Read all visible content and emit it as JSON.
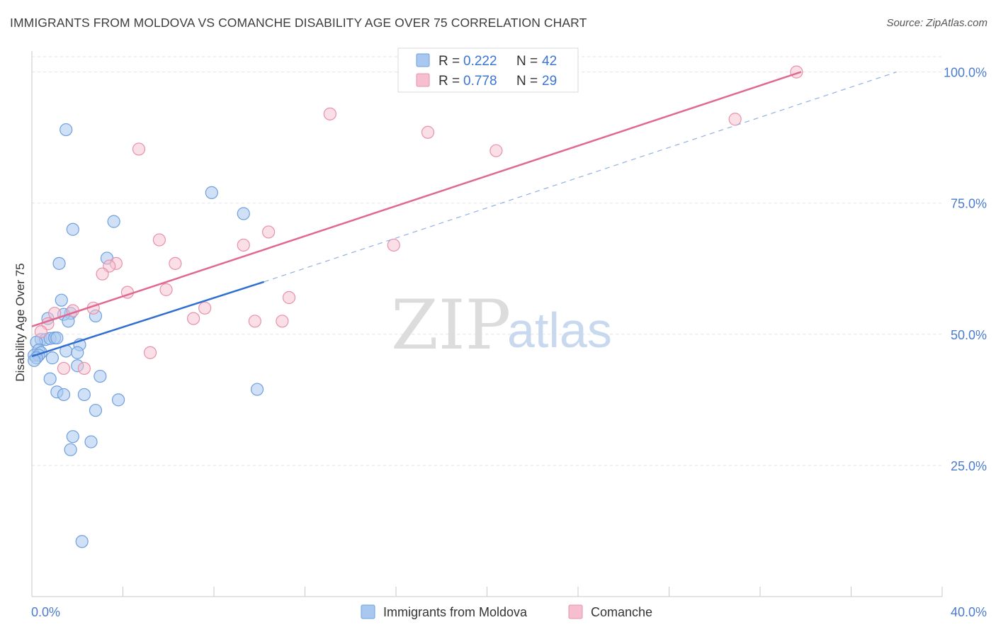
{
  "header": {
    "title": "IMMIGRANTS FROM MOLDOVA VS COMANCHE DISABILITY AGE OVER 75 CORRELATION CHART",
    "source": "Source: ZipAtlas.com"
  },
  "watermark": {
    "zip": "ZIP",
    "atlas": "atlas"
  },
  "legend": {
    "rows": [
      {
        "r_label": "R =",
        "r_value": "0.222",
        "n_label": "N =",
        "n_value": "42"
      },
      {
        "r_label": "R =",
        "r_value": "0.778",
        "n_label": "N =",
        "n_value": "29"
      }
    ]
  },
  "bottom_legend": {
    "series1": "Immigrants from Moldova",
    "series2": "Comanche"
  },
  "colors": {
    "series1_fill": "#a9c8f0",
    "series1_stroke": "#6f9fdc",
    "series1_line": "#2f6fcf",
    "series2_fill": "#f6bfd0",
    "series2_stroke": "#e890ab",
    "series2_line": "#e0698f",
    "grid": "#e3e3e3",
    "tick_text": "#4a7bd0"
  },
  "chart_data": {
    "type": "scatter",
    "title": "IMMIGRANTS FROM MOLDOVA VS COMANCHE DISABILITY AGE OVER 75 CORRELATION CHART",
    "xlabel": "",
    "ylabel": "Disability Age Over 75",
    "xlim": [
      0,
      40
    ],
    "ylim": [
      0,
      104
    ],
    "x_tick_labels": [
      "0.0%",
      "40.0%"
    ],
    "y_ticks": [
      25,
      50,
      75,
      100
    ],
    "y_tick_labels": [
      "25.0%",
      "50.0%",
      "75.0%",
      "100.0%"
    ],
    "grid": true,
    "legend_position": "top-center",
    "series": [
      {
        "name": "Immigrants from Moldova",
        "R": 0.222,
        "N": 42,
        "trend": {
          "x": [
            0,
            10.2
          ],
          "y": [
            45.8,
            60.0
          ],
          "dashed_extension": {
            "x": [
              10.2,
              38.0
            ],
            "y": [
              60.0,
              100.0
            ]
          }
        },
        "points": [
          [
            1.5,
            89.0
          ],
          [
            7.9,
            77.0
          ],
          [
            9.3,
            73.0
          ],
          [
            3.6,
            71.5
          ],
          [
            1.8,
            70.0
          ],
          [
            3.3,
            64.5
          ],
          [
            1.2,
            63.5
          ],
          [
            1.3,
            56.5
          ],
          [
            1.7,
            54.0
          ],
          [
            1.4,
            53.8
          ],
          [
            0.7,
            53.0
          ],
          [
            2.8,
            53.5
          ],
          [
            1.6,
            52.5
          ],
          [
            0.4,
            49.0
          ],
          [
            0.6,
            49.0
          ],
          [
            0.8,
            49.2
          ],
          [
            1.0,
            49.3
          ],
          [
            1.1,
            49.3
          ],
          [
            2.1,
            48.0
          ],
          [
            0.2,
            48.5
          ],
          [
            0.3,
            47.0
          ],
          [
            0.4,
            46.5
          ],
          [
            0.1,
            46.0
          ],
          [
            1.5,
            46.8
          ],
          [
            2.0,
            46.5
          ],
          [
            0.3,
            46.0
          ],
          [
            0.2,
            45.5
          ],
          [
            0.1,
            45.0
          ],
          [
            0.9,
            45.5
          ],
          [
            2.0,
            44.0
          ],
          [
            3.0,
            42.0
          ],
          [
            0.8,
            41.5
          ],
          [
            9.9,
            39.5
          ],
          [
            1.1,
            39.0
          ],
          [
            1.4,
            38.5
          ],
          [
            2.3,
            38.5
          ],
          [
            3.8,
            37.5
          ],
          [
            2.8,
            35.5
          ],
          [
            1.8,
            30.5
          ],
          [
            2.6,
            29.5
          ],
          [
            1.7,
            28.0
          ],
          [
            2.2,
            10.5
          ]
        ]
      },
      {
        "name": "Comanche",
        "R": 0.778,
        "N": 29,
        "trend": {
          "x": [
            0,
            33.8
          ],
          "y": [
            51.5,
            100.0
          ]
        },
        "points": [
          [
            33.6,
            100.0
          ],
          [
            13.1,
            92.0
          ],
          [
            30.9,
            91.0
          ],
          [
            17.4,
            88.5
          ],
          [
            20.4,
            85.0
          ],
          [
            4.7,
            85.3
          ],
          [
            10.4,
            69.5
          ],
          [
            5.6,
            68.0
          ],
          [
            9.3,
            67.0
          ],
          [
            15.9,
            67.0
          ],
          [
            6.3,
            63.5
          ],
          [
            3.7,
            63.5
          ],
          [
            3.4,
            63.0
          ],
          [
            3.1,
            61.5
          ],
          [
            5.9,
            58.5
          ],
          [
            4.2,
            58.0
          ],
          [
            11.3,
            57.0
          ],
          [
            2.7,
            55.0
          ],
          [
            7.6,
            55.0
          ],
          [
            1.8,
            54.5
          ],
          [
            1.0,
            54.0
          ],
          [
            7.1,
            53.0
          ],
          [
            11.0,
            52.5
          ],
          [
            9.8,
            52.5
          ],
          [
            0.7,
            52.0
          ],
          [
            0.4,
            50.5
          ],
          [
            5.2,
            46.5
          ],
          [
            1.4,
            43.5
          ],
          [
            2.3,
            43.5
          ]
        ]
      }
    ]
  }
}
